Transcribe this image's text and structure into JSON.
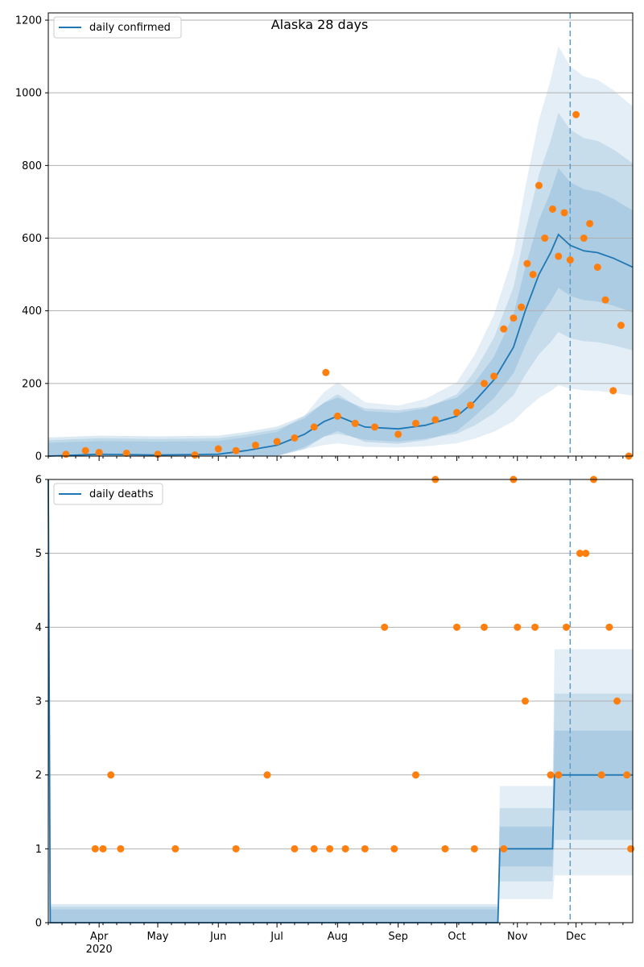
{
  "colors": {
    "line": "#1f77b4",
    "points": "#ff7f0e",
    "band": "#1f77b4",
    "grid": "#b0b0b0",
    "vline": "#5e9ec9"
  },
  "chart_data": [
    {
      "type": "line",
      "title": "Alaska 28 days",
      "legend": {
        "entries": [
          "daily confirmed"
        ],
        "placement": "top-left"
      },
      "grid": {
        "y": true,
        "x": false
      },
      "ylim": [
        0,
        1220
      ],
      "yticks": [
        0,
        200,
        400,
        600,
        800,
        1000,
        1200
      ],
      "xlim": [
        "2020-03-06",
        "2020-12-30"
      ],
      "forecast_start": "2020-11-28",
      "series": [
        {
          "name": "daily confirmed",
          "kind": "line",
          "x": [
            "2020-03-06",
            "2020-04-01",
            "2020-05-01",
            "2020-06-01",
            "2020-06-15",
            "2020-07-01",
            "2020-07-15",
            "2020-07-25",
            "2020-08-01",
            "2020-08-15",
            "2020-09-01",
            "2020-09-15",
            "2020-10-01",
            "2020-10-10",
            "2020-10-20",
            "2020-10-30",
            "2020-11-05",
            "2020-11-12",
            "2020-11-18",
            "2020-11-22",
            "2020-11-28",
            "2020-12-05",
            "2020-12-12",
            "2020-12-20",
            "2020-12-30"
          ],
          "y": [
            0,
            5,
            3,
            5,
            15,
            30,
            60,
            95,
            110,
            80,
            75,
            85,
            110,
            150,
            210,
            300,
            400,
            500,
            560,
            610,
            580,
            565,
            560,
            545,
            520
          ]
        },
        {
          "name": "",
          "kind": "scatter",
          "x": [
            "2020-03-15",
            "2020-03-25",
            "2020-04-01",
            "2020-04-15",
            "2020-05-01",
            "2020-05-20",
            "2020-06-01",
            "2020-06-10",
            "2020-06-20",
            "2020-07-01",
            "2020-07-10",
            "2020-07-20",
            "2020-07-26",
            "2020-08-01",
            "2020-08-10",
            "2020-08-20",
            "2020-09-01",
            "2020-09-10",
            "2020-09-20",
            "2020-10-01",
            "2020-10-08",
            "2020-10-15",
            "2020-10-20",
            "2020-10-25",
            "2020-10-30",
            "2020-11-03",
            "2020-11-06",
            "2020-11-09",
            "2020-11-12",
            "2020-11-15",
            "2020-11-19",
            "2020-11-22",
            "2020-11-25",
            "2020-11-28",
            "2020-12-01",
            "2020-12-05",
            "2020-12-08",
            "2020-12-12",
            "2020-12-16",
            "2020-12-20",
            "2020-12-24",
            "2020-12-28"
          ],
          "y": [
            5,
            15,
            10,
            8,
            5,
            3,
            20,
            15,
            30,
            40,
            50,
            80,
            230,
            110,
            90,
            80,
            60,
            90,
            100,
            120,
            140,
            200,
            220,
            350,
            380,
            410,
            530,
            500,
            745,
            600,
            680,
            550,
            670,
            540,
            940,
            600,
            640,
            520,
            430,
            180,
            360,
            0
          ]
        }
      ]
    },
    {
      "type": "line",
      "legend": {
        "entries": [
          "daily deaths"
        ],
        "placement": "top-left"
      },
      "grid": {
        "y": true,
        "x": false
      },
      "ylim": [
        0,
        6
      ],
      "yticks": [
        0,
        1,
        2,
        3,
        4,
        5,
        6
      ],
      "xlim": [
        "2020-03-06",
        "2020-12-30"
      ],
      "xticks": [
        "Apr",
        "May",
        "Jun",
        "Jul",
        "Aug",
        "Sep",
        "Oct",
        "Nov",
        "Dec"
      ],
      "xtick_year": "2020",
      "forecast_start": "2020-11-28",
      "series": [
        {
          "name": "daily deaths",
          "kind": "line",
          "x": [
            "2020-03-06",
            "2020-03-07",
            "2020-10-22",
            "2020-10-23",
            "2020-11-19",
            "2020-11-20",
            "2020-12-30"
          ],
          "y": [
            6,
            0,
            0,
            1,
            1,
            2,
            2
          ]
        },
        {
          "name": "",
          "kind": "scatter",
          "x": [
            "2020-03-30",
            "2020-04-03",
            "2020-04-07",
            "2020-04-12",
            "2020-05-10",
            "2020-06-10",
            "2020-06-26",
            "2020-07-10",
            "2020-07-20",
            "2020-07-28",
            "2020-08-05",
            "2020-08-15",
            "2020-08-25",
            "2020-08-30",
            "2020-09-10",
            "2020-09-20",
            "2020-09-25",
            "2020-10-01",
            "2020-10-10",
            "2020-10-15",
            "2020-10-25",
            "2020-10-30",
            "2020-11-01",
            "2020-11-05",
            "2020-11-10",
            "2020-11-18",
            "2020-11-22",
            "2020-11-26",
            "2020-12-03",
            "2020-12-06",
            "2020-12-10",
            "2020-12-14",
            "2020-12-18",
            "2020-12-22",
            "2020-12-27",
            "2020-12-29"
          ],
          "y": [
            1,
            1,
            2,
            1,
            1,
            1,
            2,
            1,
            1,
            1,
            1,
            1,
            4,
            1,
            2,
            6,
            1,
            4,
            1,
            4,
            1,
            6,
            4,
            3,
            4,
            2,
            2,
            4,
            5,
            5,
            6,
            2,
            4,
            3,
            2,
            1
          ]
        }
      ]
    }
  ]
}
